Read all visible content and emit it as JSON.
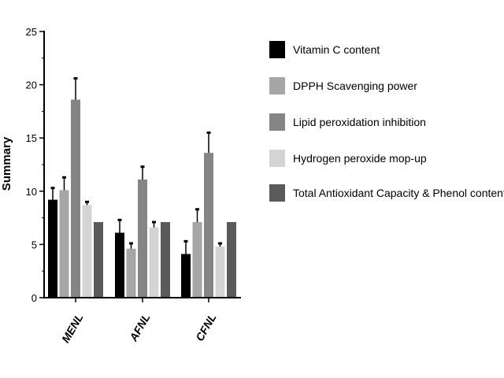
{
  "chart_data": {
    "type": "bar",
    "title": "",
    "xlabel": "",
    "ylabel": "Summary",
    "ylim": [
      0,
      25
    ],
    "yticks": [
      "0",
      "5",
      "10",
      "15",
      "20",
      "25"
    ],
    "categories": [
      "MENL",
      "AFNL",
      "CFNL"
    ],
    "grid": false,
    "legend_position": "right",
    "series": [
      {
        "name": "Vitamin C content",
        "color": "#000000",
        "values": [
          9.2,
          6.1,
          4.1
        ],
        "errors": [
          1.1,
          1.2,
          1.2
        ]
      },
      {
        "name": "DPPH Scavenging power",
        "color": "#a6a6a8",
        "values": [
          10.1,
          4.6,
          7.1
        ],
        "errors": [
          1.2,
          0.5,
          1.2
        ]
      },
      {
        "name": "Lipid peroxidation inhibition",
        "color": "#858585",
        "values": [
          18.6,
          11.1,
          13.6
        ],
        "errors": [
          2.0,
          1.2,
          1.9
        ]
      },
      {
        "name": "Hydrogen peroxide mop-up",
        "color": "#d4d4d4",
        "values": [
          8.7,
          6.6,
          4.8
        ],
        "errors": [
          0.3,
          0.5,
          0.3
        ]
      },
      {
        "name": "Total Antioxidant Capacity & Phenol content",
        "color": "#5a5a5a",
        "values": [
          7.1,
          7.1,
          7.1
        ],
        "errors": [
          0,
          0,
          0
        ]
      }
    ]
  }
}
